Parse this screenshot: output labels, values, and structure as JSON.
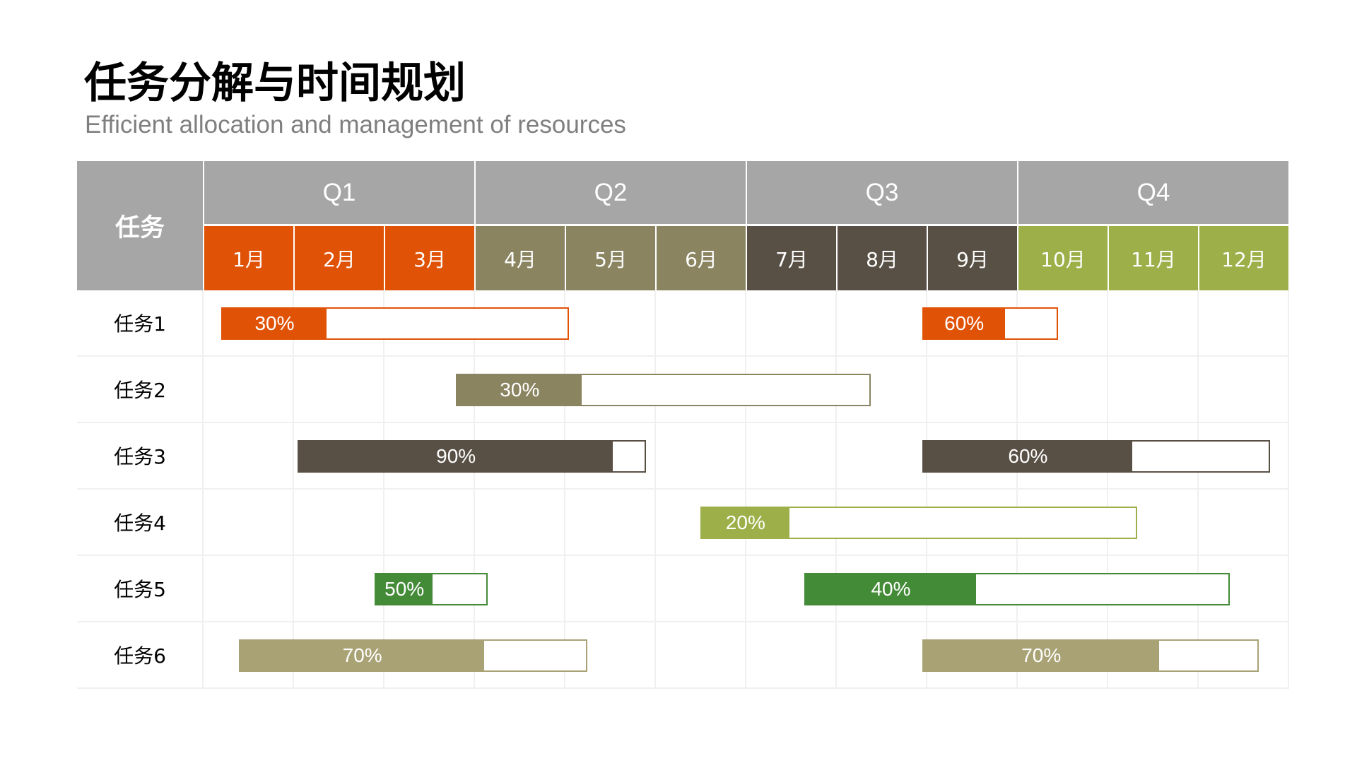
{
  "title": "任务分解与时间规划",
  "subtitle": "Efficient allocation and management of resources",
  "chart_data": {
    "type": "gantt",
    "header_task": "任务",
    "quarters": [
      {
        "label": "Q1",
        "months": [
          1,
          2,
          3
        ]
      },
      {
        "label": "Q2",
        "months": [
          4,
          5,
          6
        ]
      },
      {
        "label": "Q3",
        "months": [
          7,
          8,
          9
        ]
      },
      {
        "label": "Q4",
        "months": [
          10,
          11,
          12
        ]
      }
    ],
    "months": [
      {
        "label": "1月",
        "color": "#e05206"
      },
      {
        "label": "2月",
        "color": "#e05206"
      },
      {
        "label": "3月",
        "color": "#e05206"
      },
      {
        "label": "4月",
        "color": "#8a8460"
      },
      {
        "label": "5月",
        "color": "#8a8460"
      },
      {
        "label": "6月",
        "color": "#8a8460"
      },
      {
        "label": "7月",
        "color": "#595045"
      },
      {
        "label": "8月",
        "color": "#595045"
      },
      {
        "label": "9月",
        "color": "#595045"
      },
      {
        "label": "10月",
        "color": "#9caf48"
      },
      {
        "label": "11月",
        "color": "#9caf48"
      },
      {
        "label": "12月",
        "color": "#9caf48"
      }
    ],
    "tasks": [
      {
        "name": "任务1",
        "bars": [
          {
            "start": 1.2,
            "end": 5.05,
            "progress": 30,
            "label": "30%",
            "color": "#e05206"
          },
          {
            "start": 8.95,
            "end": 10.45,
            "progress": 60,
            "label": "60%",
            "color": "#e05206"
          }
        ]
      },
      {
        "name": "任务2",
        "bars": [
          {
            "start": 3.8,
            "end": 8.38,
            "progress": 30,
            "label": "30%",
            "color": "#8a8460"
          }
        ]
      },
      {
        "name": "任务3",
        "bars": [
          {
            "start": 2.05,
            "end": 5.9,
            "progress": 90,
            "label": "90%",
            "color": "#595045"
          },
          {
            "start": 8.95,
            "end": 12.8,
            "progress": 60,
            "label": "60%",
            "color": "#595045"
          }
        ]
      },
      {
        "name": "任务4",
        "bars": [
          {
            "start": 6.5,
            "end": 11.33,
            "progress": 20,
            "label": "20%",
            "color": "#9caf48"
          }
        ]
      },
      {
        "name": "任务5",
        "bars": [
          {
            "start": 2.9,
            "end": 4.15,
            "progress": 50,
            "label": "50%",
            "color": "#448b38"
          },
          {
            "start": 7.65,
            "end": 12.35,
            "progress": 40,
            "label": "40%",
            "color": "#448b38"
          }
        ]
      },
      {
        "name": "任务6",
        "bars": [
          {
            "start": 1.4,
            "end": 5.25,
            "progress": 70,
            "label": "70%",
            "color": "#a9a275"
          },
          {
            "start": 8.95,
            "end": 12.67,
            "progress": 70,
            "label": "70%",
            "color": "#a9a275"
          }
        ]
      }
    ]
  }
}
